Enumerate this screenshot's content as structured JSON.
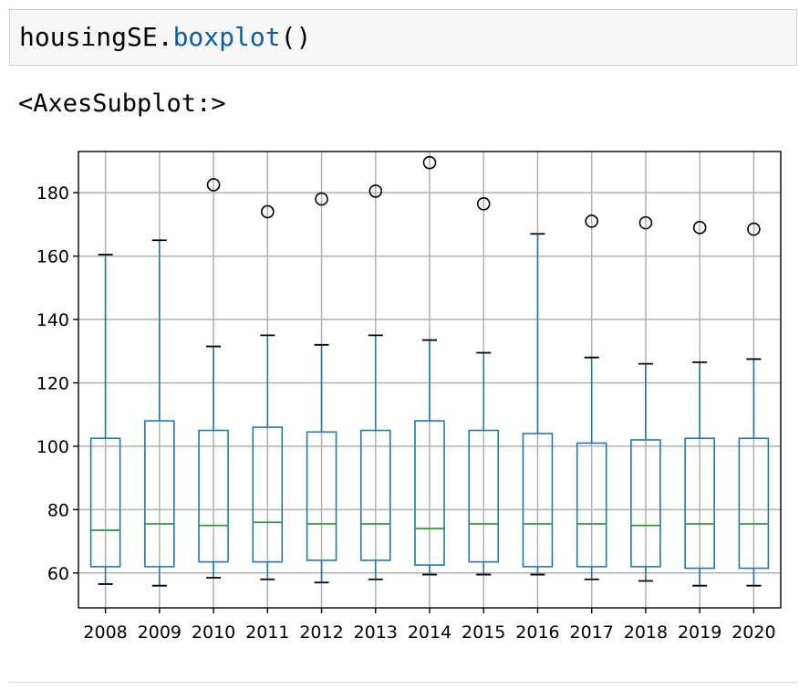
{
  "code_cell": {
    "object": "housingSE",
    "dot": ".",
    "method": "boxplot",
    "call": "()"
  },
  "output": {
    "repr": "<AxesSubplot:>"
  },
  "colors": {
    "box": "#1f77b4",
    "median": "#2ca02c",
    "grid": "#b0b0b0",
    "axes": "#000000",
    "code_method": "#0b5cad"
  },
  "chart_data": {
    "type": "box",
    "title": "",
    "xlabel": "",
    "ylabel": "",
    "grid": true,
    "ylim": [
      49,
      193
    ],
    "yticks": [
      60,
      80,
      100,
      120,
      140,
      160,
      180
    ],
    "categories": [
      "2008",
      "2009",
      "2010",
      "2011",
      "2012",
      "2013",
      "2014",
      "2015",
      "2016",
      "2017",
      "2018",
      "2019",
      "2020"
    ],
    "boxes": [
      {
        "label": "2008",
        "whisker_low": 56.5,
        "q1": 62,
        "median": 73.5,
        "q3": 102.5,
        "whisker_high": 160.5,
        "outliers": []
      },
      {
        "label": "2009",
        "whisker_low": 56,
        "q1": 62,
        "median": 75.5,
        "q3": 108,
        "whisker_high": 165,
        "outliers": []
      },
      {
        "label": "2010",
        "whisker_low": 58.5,
        "q1": 63.5,
        "median": 75,
        "q3": 105,
        "whisker_high": 131.5,
        "outliers": [
          182.5
        ]
      },
      {
        "label": "2011",
        "whisker_low": 58,
        "q1": 63.5,
        "median": 76,
        "q3": 106,
        "whisker_high": 135,
        "outliers": [
          174
        ]
      },
      {
        "label": "2012",
        "whisker_low": 57,
        "q1": 64,
        "median": 75.5,
        "q3": 104.5,
        "whisker_high": 132,
        "outliers": [
          178
        ]
      },
      {
        "label": "2013",
        "whisker_low": 58,
        "q1": 64,
        "median": 75.5,
        "q3": 105,
        "whisker_high": 135,
        "outliers": [
          180.5
        ]
      },
      {
        "label": "2014",
        "whisker_low": 59.5,
        "q1": 62.5,
        "median": 74,
        "q3": 108,
        "whisker_high": 133.5,
        "outliers": [
          189.5
        ]
      },
      {
        "label": "2015",
        "whisker_low": 59.5,
        "q1": 63.5,
        "median": 75.5,
        "q3": 105,
        "whisker_high": 129.5,
        "outliers": [
          176.5
        ]
      },
      {
        "label": "2016",
        "whisker_low": 59.5,
        "q1": 62,
        "median": 75.5,
        "q3": 104,
        "whisker_high": 167,
        "outliers": []
      },
      {
        "label": "2017",
        "whisker_low": 58,
        "q1": 62,
        "median": 75.5,
        "q3": 101,
        "whisker_high": 128,
        "outliers": [
          171
        ]
      },
      {
        "label": "2018",
        "whisker_low": 57.5,
        "q1": 62,
        "median": 75,
        "q3": 102,
        "whisker_high": 126,
        "outliers": [
          170.5
        ]
      },
      {
        "label": "2019",
        "whisker_low": 56,
        "q1": 61.5,
        "median": 75.5,
        "q3": 102.5,
        "whisker_high": 126.5,
        "outliers": [
          169
        ]
      },
      {
        "label": "2020",
        "whisker_low": 56,
        "q1": 61.5,
        "median": 75.5,
        "q3": 102.5,
        "whisker_high": 127.5,
        "outliers": [
          168.5
        ]
      }
    ]
  }
}
